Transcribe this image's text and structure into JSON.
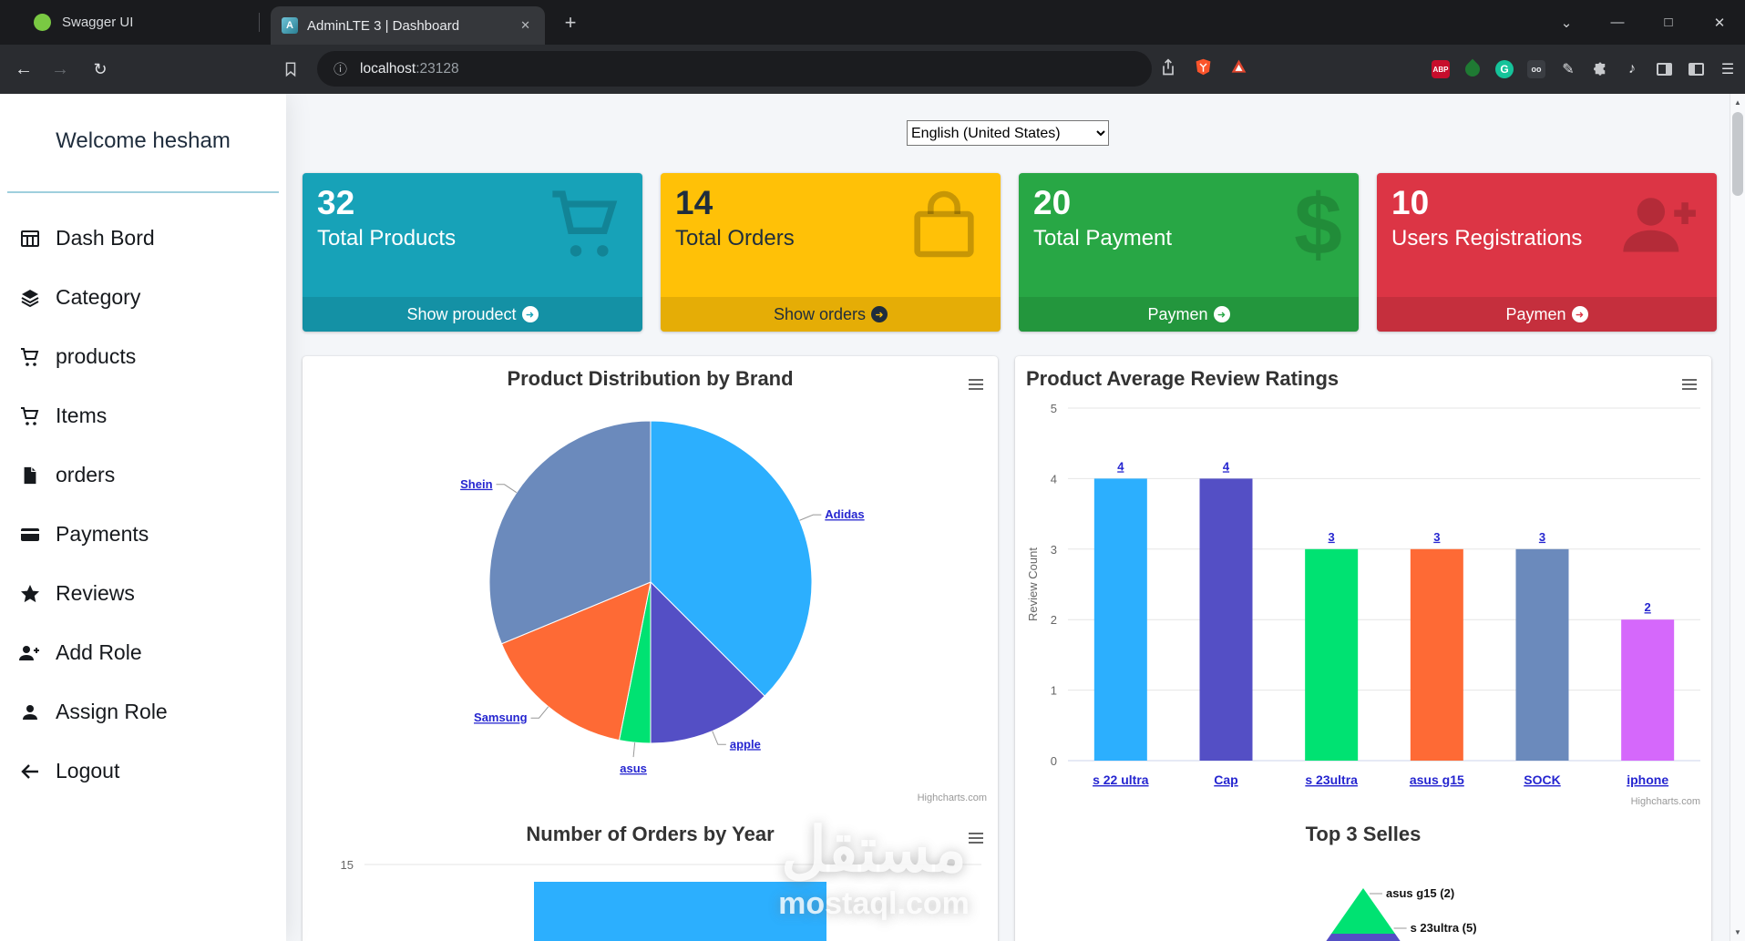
{
  "icons": {
    "close": "✕",
    "minimize": "—",
    "maximize": "□",
    "chevron_down": "⌄",
    "new_tab": "+",
    "back": "←",
    "forward": "→",
    "reload": "↻",
    "menu": "☰",
    "music": "♪",
    "pencil": "✎",
    "more_arrow": "➜",
    "scroll_up": "▲",
    "scroll_down": "▼",
    "info": "ⓘ"
  },
  "browser": {
    "background_tab": "Swagger UI",
    "active_tab": "AdminLTE 3 | Dashboard",
    "url_host": "localhost",
    "url_port": ":23128",
    "extensions": {
      "abp": "ABP",
      "grammarly": "G",
      "oo": "oo"
    }
  },
  "sidebar": {
    "welcome": "Welcome hesham",
    "items": [
      {
        "label": "Dash Bord",
        "icon": "table-icon"
      },
      {
        "label": "Category",
        "icon": "layers-icon"
      },
      {
        "label": "products",
        "icon": "cart-icon"
      },
      {
        "label": "Items",
        "icon": "cart-icon"
      },
      {
        "label": "orders",
        "icon": "file-icon"
      },
      {
        "label": "Payments",
        "icon": "credit-card-icon"
      },
      {
        "label": "Reviews",
        "icon": "star-icon"
      },
      {
        "label": "Add Role",
        "icon": "user-plus-icon"
      },
      {
        "label": "Assign Role",
        "icon": "user-icon"
      },
      {
        "label": "Logout",
        "icon": "arrow-left-icon"
      }
    ]
  },
  "main": {
    "language": "English (United States)",
    "cards": [
      {
        "value": "32",
        "label": "Total Products",
        "footer": "Show proudect",
        "color": "#17a2b8",
        "icon": "cart-icon"
      },
      {
        "value": "14",
        "label": "Total Orders",
        "footer": "Show orders",
        "color": "#ffc107",
        "icon": "bag-icon"
      },
      {
        "value": "20",
        "label": "Total Payment",
        "footer": "Paymen",
        "color": "#28a745",
        "icon": "dollar-icon"
      },
      {
        "value": "10",
        "label": "Users Registrations",
        "footer": "Paymen",
        "color": "#dc3545",
        "icon": "user-plus-icon"
      }
    ]
  },
  "chart_data": [
    {
      "type": "pie",
      "title": "Product Distribution by Brand",
      "labels": [
        "Adidas",
        "apple",
        "asus",
        "Samsung",
        "Shein"
      ],
      "values": [
        12,
        4,
        1,
        5,
        10
      ],
      "values_estimated": true,
      "colors": [
        "#2caffe",
        "#544fc5",
        "#00e272",
        "#fe6a35",
        "#6b8abc"
      ],
      "legend": "none",
      "credits": "Highcharts.com"
    },
    {
      "type": "bar",
      "title": "Product Average Review Ratings",
      "categories": [
        "s 22 ultra",
        "Cap",
        "s 23ultra",
        "asus g15",
        "SOCK",
        "iphone"
      ],
      "values": [
        4,
        4,
        3,
        3,
        3,
        2
      ],
      "colors": [
        "#2caffe",
        "#544fc5",
        "#00e272",
        "#fe6a35",
        "#6b8abc",
        "#d568fb"
      ],
      "xlabel": "",
      "ylabel": "Review Count",
      "ylim": [
        0,
        5
      ],
      "yticks": [
        0,
        1,
        2,
        3,
        4,
        5
      ],
      "grid": true,
      "legend": "none",
      "credits": "Highcharts.com"
    },
    {
      "type": "bar",
      "title": "Number of Orders by Year",
      "note": "only top of chart visible in viewport",
      "visible_ytick": 15,
      "bar_color": "#2caffe"
    },
    {
      "type": "pyramid",
      "title": "Top 3 Selles",
      "labels": [
        "asus g15 (2)",
        "s 23ultra (5)"
      ],
      "values": [
        2,
        5
      ],
      "colors": [
        "#00e272",
        "#544fc5"
      ],
      "note": "only apex of pyramid visible in viewport"
    }
  ],
  "watermark": {
    "arabic": "مستقل",
    "latin": "mostaql.com"
  }
}
